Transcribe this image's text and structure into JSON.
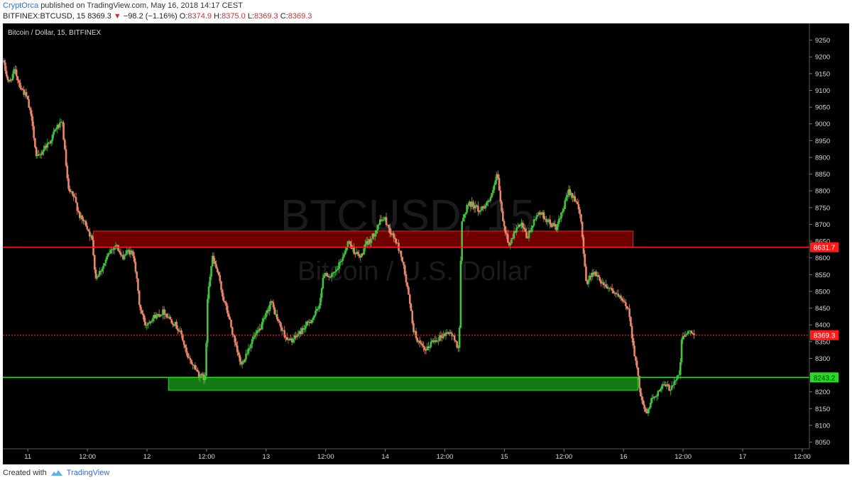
{
  "header": {
    "author": "CryptOrca",
    "published": "published on TradingView.com, May 16, 2018 14:17 CEST",
    "symbol_interval": "BITFINEX:BTCUSD, 15",
    "last": "8369.3",
    "change": "−98.2 (−1.16%)",
    "o_label": "O:",
    "o_val": "8374.9",
    "h_label": "H:",
    "h_val": "8375.0",
    "l_label": "L:",
    "l_val": "8369.3",
    "c_label": "C:",
    "c_val": "8369.3"
  },
  "footer": {
    "created_with": "Created with",
    "brand": "TradingView"
  },
  "colors": {
    "background": "#000000",
    "up": "#3fc43f",
    "down": "#e8866a",
    "resistance": "#ff1a1a",
    "support": "#22dd22",
    "axis_text": "#d8d8d8"
  },
  "chart_data": {
    "type": "candlestick",
    "title": "Bitcoin / Dollar, 15, BITFINEX",
    "watermark_symbol": "BTCUSD, 15",
    "watermark_name": "Bitcoin / U.S. Dollar",
    "ylim": [
      8030,
      9300
    ],
    "y_ticks": [
      8050,
      8100,
      8150,
      8200,
      8250,
      8300,
      8350,
      8400,
      8450,
      8500,
      8550,
      8600,
      8650,
      8700,
      8750,
      8800,
      8850,
      8900,
      8950,
      9000,
      9050,
      9100,
      9150,
      9200,
      9250
    ],
    "x_ticks": [
      {
        "label": "11",
        "day": 0.0
      },
      {
        "label": "12:00",
        "day": 0.5
      },
      {
        "label": "12",
        "day": 1.0
      },
      {
        "label": "12:00",
        "day": 1.5
      },
      {
        "label": "13",
        "day": 2.0
      },
      {
        "label": "12:00",
        "day": 2.5
      },
      {
        "label": "14",
        "day": 3.0
      },
      {
        "label": "12:00",
        "day": 3.5
      },
      {
        "label": "15",
        "day": 4.0
      },
      {
        "label": "12:00",
        "day": 4.5
      },
      {
        "label": "16",
        "day": 5.0
      },
      {
        "label": "12:00",
        "day": 5.5
      },
      {
        "label": "17",
        "day": 6.0
      },
      {
        "label": "12:00",
        "day": 6.5
      }
    ],
    "x_range_days": [
      -0.21,
      6.56
    ],
    "price_path": [
      [
        -0.2,
        9190
      ],
      [
        -0.15,
        9120
      ],
      [
        -0.1,
        9160
      ],
      [
        -0.05,
        9110
      ],
      [
        0.0,
        9080
      ],
      [
        0.05,
        9000
      ],
      [
        0.08,
        8900
      ],
      [
        0.1,
        8900
      ],
      [
        0.15,
        8930
      ],
      [
        0.2,
        8950
      ],
      [
        0.25,
        8990
      ],
      [
        0.3,
        9000
      ],
      [
        0.35,
        8800
      ],
      [
        0.4,
        8780
      ],
      [
        0.45,
        8720
      ],
      [
        0.5,
        8700
      ],
      [
        0.55,
        8650
      ],
      [
        0.58,
        8540
      ],
      [
        0.65,
        8580
      ],
      [
        0.7,
        8620
      ],
      [
        0.75,
        8640
      ],
      [
        0.8,
        8600
      ],
      [
        0.85,
        8620
      ],
      [
        0.9,
        8610
      ],
      [
        0.95,
        8450
      ],
      [
        1.0,
        8400
      ],
      [
        1.05,
        8420
      ],
      [
        1.1,
        8430
      ],
      [
        1.15,
        8440
      ],
      [
        1.2,
        8420
      ],
      [
        1.25,
        8400
      ],
      [
        1.3,
        8370
      ],
      [
        1.35,
        8300
      ],
      [
        1.4,
        8280
      ],
      [
        1.45,
        8250
      ],
      [
        1.5,
        8240
      ],
      [
        1.52,
        8500
      ],
      [
        1.56,
        8600
      ],
      [
        1.6,
        8560
      ],
      [
        1.65,
        8480
      ],
      [
        1.7,
        8420
      ],
      [
        1.75,
        8340
      ],
      [
        1.8,
        8280
      ],
      [
        1.85,
        8320
      ],
      [
        1.9,
        8360
      ],
      [
        1.95,
        8380
      ],
      [
        2.0,
        8420
      ],
      [
        2.05,
        8470
      ],
      [
        2.1,
        8420
      ],
      [
        2.15,
        8380
      ],
      [
        2.2,
        8350
      ],
      [
        2.25,
        8360
      ],
      [
        2.3,
        8380
      ],
      [
        2.35,
        8400
      ],
      [
        2.4,
        8420
      ],
      [
        2.45,
        8450
      ],
      [
        2.5,
        8560
      ],
      [
        2.55,
        8540
      ],
      [
        2.6,
        8560
      ],
      [
        2.65,
        8600
      ],
      [
        2.7,
        8650
      ],
      [
        2.75,
        8620
      ],
      [
        2.8,
        8600
      ],
      [
        2.85,
        8640
      ],
      [
        2.9,
        8660
      ],
      [
        2.95,
        8700
      ],
      [
        3.0,
        8720
      ],
      [
        3.05,
        8680
      ],
      [
        3.1,
        8650
      ],
      [
        3.15,
        8600
      ],
      [
        3.2,
        8500
      ],
      [
        3.25,
        8380
      ],
      [
        3.3,
        8340
      ],
      [
        3.35,
        8320
      ],
      [
        3.4,
        8350
      ],
      [
        3.45,
        8360
      ],
      [
        3.5,
        8370
      ],
      [
        3.55,
        8380
      ],
      [
        3.6,
        8350
      ],
      [
        3.63,
        8330
      ],
      [
        3.65,
        8700
      ],
      [
        3.7,
        8760
      ],
      [
        3.75,
        8760
      ],
      [
        3.8,
        8740
      ],
      [
        3.85,
        8760
      ],
      [
        3.9,
        8780
      ],
      [
        3.95,
        8850
      ],
      [
        4.0,
        8700
      ],
      [
        4.05,
        8640
      ],
      [
        4.1,
        8680
      ],
      [
        4.15,
        8700
      ],
      [
        4.2,
        8660
      ],
      [
        4.25,
        8700
      ],
      [
        4.3,
        8740
      ],
      [
        4.35,
        8720
      ],
      [
        4.4,
        8700
      ],
      [
        4.45,
        8690
      ],
      [
        4.5,
        8740
      ],
      [
        4.55,
        8800
      ],
      [
        4.6,
        8780
      ],
      [
        4.65,
        8720
      ],
      [
        4.68,
        8600
      ],
      [
        4.7,
        8520
      ],
      [
        4.75,
        8560
      ],
      [
        4.8,
        8540
      ],
      [
        4.85,
        8520
      ],
      [
        4.9,
        8510
      ],
      [
        4.95,
        8490
      ],
      [
        5.0,
        8470
      ],
      [
        5.05,
        8450
      ],
      [
        5.1,
        8320
      ],
      [
        5.15,
        8200
      ],
      [
        5.2,
        8130
      ],
      [
        5.25,
        8180
      ],
      [
        5.3,
        8200
      ],
      [
        5.35,
        8220
      ],
      [
        5.4,
        8210
      ],
      [
        5.45,
        8240
      ],
      [
        5.48,
        8250
      ],
      [
        5.5,
        8360
      ],
      [
        5.55,
        8380
      ],
      [
        5.6,
        8370
      ]
    ],
    "levels": [
      {
        "name": "resistance",
        "price": 8631.7,
        "label": "8631.7"
      },
      {
        "name": "support",
        "price": 8243.2,
        "label": "8243.2"
      },
      {
        "name": "last",
        "price": 8369.3,
        "label": "8369.3"
      }
    ],
    "zones": [
      {
        "name": "resistance-zone",
        "from_day": 0.55,
        "to_day": 5.08,
        "low": 8631.7,
        "high": 8680
      },
      {
        "name": "support-zone",
        "from_day": 1.18,
        "to_day": 5.12,
        "low": 8205,
        "high": 8243.2
      }
    ]
  }
}
